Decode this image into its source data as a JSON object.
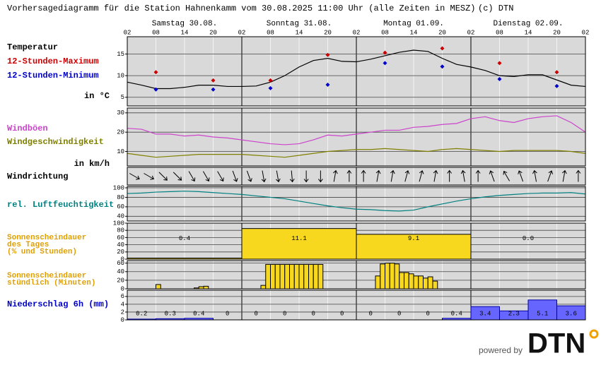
{
  "header": {
    "title": "Vorhersagediagramm für die Station Hahnenkamm vom 30.08.2025 11:00 Uhr (alle Zeiten in MESZ)",
    "copyright": "(c) DTN"
  },
  "time_axis": {
    "days": [
      "Samstag 30.08.",
      "Sonntag 31.08.",
      "Montag 01.09.",
      "Dienstag 02.09."
    ],
    "hours": [
      "02",
      "08",
      "14",
      "20",
      "02",
      "08",
      "14",
      "20",
      "02",
      "08",
      "14",
      "20",
      "02",
      "08",
      "14",
      "20",
      "02"
    ]
  },
  "footer": {
    "powered_by": "powered by",
    "logo": "DTN"
  },
  "chart_data": [
    {
      "type": "line",
      "unit": "in °C",
      "ylim": [
        3,
        19
      ],
      "yticks": [
        5,
        10,
        15
      ],
      "grid": true,
      "series": [
        {
          "name": "Temperatur",
          "color": "#000000",
          "style": "line",
          "values": [
            8.5,
            7.8,
            7.0,
            7.0,
            7.3,
            7.8,
            7.8,
            7.5,
            7.5,
            7.6,
            8.5,
            10,
            12,
            13.5,
            14,
            13.3,
            13.2,
            13.8,
            14.6,
            15.4,
            15.9,
            15.6,
            14,
            12.6,
            12,
            11.2,
            10,
            9.8,
            10.2,
            10.2,
            9,
            7.8,
            7.5
          ]
        },
        {
          "name": "12-Stunden-Maximum",
          "color": "#cc0000",
          "style": "diamond",
          "values": [
            10.8,
            8.9,
            8.9,
            14.8,
            15.3,
            16.3,
            12.9,
            10.8
          ]
        },
        {
          "name": "12-Stunden-Minimum",
          "color": "#0000cc",
          "style": "diamond",
          "values": [
            6.8,
            6.8,
            7.1,
            7.9,
            12.9,
            12.1,
            9.2,
            7.6
          ]
        }
      ]
    },
    {
      "type": "line",
      "unit": "in km/h",
      "ylim": [
        2.5,
        32.5
      ],
      "yticks": [
        10,
        20,
        30
      ],
      "grid": true,
      "series": [
        {
          "name": "Windböen",
          "color": "#cc44cc",
          "style": "line",
          "values": [
            22,
            21.5,
            19,
            19,
            18,
            18.5,
            17.5,
            17,
            16,
            15,
            14,
            13.5,
            14,
            16,
            18.5,
            18,
            19,
            20,
            21,
            21,
            22.5,
            23,
            24,
            24.5,
            27,
            28,
            26,
            25,
            27,
            28,
            28.5,
            25,
            20
          ]
        },
        {
          "name": "Windgeschwindigkeit",
          "color": "#808000",
          "style": "line",
          "values": [
            9,
            8,
            7,
            7.5,
            8,
            8.5,
            8.5,
            8.5,
            8.5,
            8,
            7.5,
            7,
            8,
            9,
            10,
            10.5,
            11,
            11,
            11.5,
            11,
            10.5,
            10,
            11,
            11.5,
            11,
            10.5,
            10,
            10.5,
            10.5,
            10.5,
            10.5,
            10,
            9
          ]
        }
      ]
    },
    {
      "type": "arrows",
      "label_lines": [
        "Windrichtung"
      ],
      "color": "#000000",
      "values": [
        120,
        120,
        135,
        135,
        150,
        150,
        150,
        160,
        160,
        170,
        170,
        175,
        180,
        180,
        10,
        0,
        0,
        10,
        10,
        15,
        15,
        10,
        0,
        350,
        0,
        340,
        330,
        340,
        350,
        20,
        10,
        0
      ]
    },
    {
      "type": "line",
      "ylim": [
        30,
        103
      ],
      "yticks": [
        40,
        60,
        80,
        100
      ],
      "grid": true,
      "series": [
        {
          "name": "rel. Luftfeuchtigkeit",
          "color": "#008080",
          "style": "line",
          "values": [
            88,
            89,
            91,
            92,
            93,
            92,
            90,
            88,
            86,
            83,
            80,
            77,
            72,
            67,
            62,
            58,
            55,
            54,
            52,
            51,
            53,
            60,
            66,
            72,
            77,
            81,
            84,
            86,
            88,
            89,
            89,
            90,
            87
          ]
        }
      ]
    },
    {
      "type": "bar",
      "label_lines": [
        "Sonnenscheindauer",
        "des Tages",
        "(% und Stunden)"
      ],
      "label_color": "#e0a000",
      "color": "#f7d81e",
      "ylim": [
        0,
        100
      ],
      "yticks": [
        0,
        20,
        40,
        60,
        80,
        100
      ],
      "grid": true,
      "values": [
        3,
        85,
        69,
        0
      ],
      "hour_labels": [
        "0.4",
        "11.1",
        "9.1",
        "0.0"
      ]
    },
    {
      "type": "bar",
      "label_lines": [
        "Sonnenscheindauer",
        "stündlich (Minuten)"
      ],
      "label_color": "#e0a000",
      "color": "#f7d81e",
      "ylim": [
        0,
        66
      ],
      "yticks": [
        0,
        20,
        40,
        60
      ],
      "grid": true,
      "values": [
        0,
        0,
        0,
        0,
        0,
        0,
        10,
        0,
        0,
        0,
        0,
        0,
        0,
        0,
        2,
        5,
        6,
        0,
        0,
        0,
        0,
        0,
        0,
        0,
        0,
        0,
        0,
        0,
        8,
        57,
        57,
        57,
        57,
        57,
        57,
        57,
        57,
        57,
        57,
        57,
        57,
        0,
        0,
        0,
        0,
        0,
        0,
        0,
        0,
        0,
        0,
        0,
        30,
        58,
        60,
        60,
        58,
        38,
        38,
        35,
        30,
        30,
        25,
        28,
        18,
        0,
        0,
        0,
        0,
        0,
        0,
        0,
        0,
        0,
        0,
        0,
        0,
        0,
        0,
        0,
        0,
        0,
        0,
        0,
        0,
        0,
        0,
        0,
        0,
        0,
        0,
        0,
        0,
        0,
        0,
        0
      ]
    },
    {
      "type": "bar",
      "label_lines": [
        "Niederschlag 6h (mm)"
      ],
      "label_color": "#0000cc",
      "color": "#6666ff",
      "ylim": [
        0,
        7.6
      ],
      "yticks": [
        0,
        2,
        4,
        6
      ],
      "grid": true,
      "show_values": true,
      "values": [
        0.2,
        0.3,
        0.4,
        0,
        0,
        0,
        0,
        0,
        0,
        0,
        0,
        0.4,
        3.4,
        2.3,
        5.1,
        3.6
      ]
    }
  ]
}
